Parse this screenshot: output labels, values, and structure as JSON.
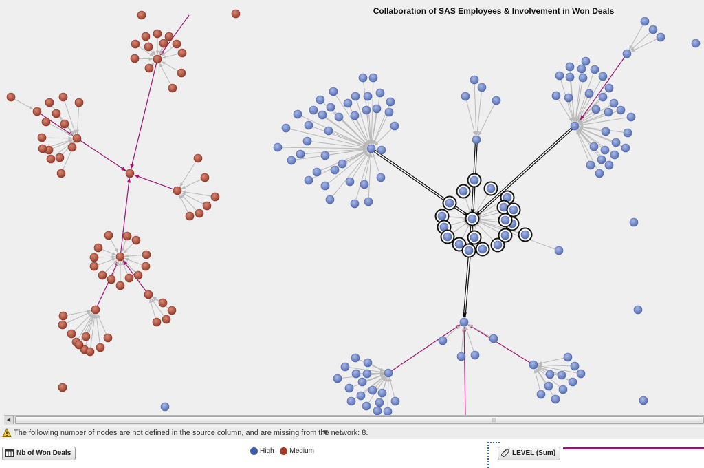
{
  "title": "Collaboration of SAS Employees & Involvement in Won Deals",
  "warning": "The following number of nodes are not defined in the source column, and are missing from the network: 8.",
  "footer": {
    "won_deals_button": "Nb of Won Deals",
    "level_button": "LEVEL (Sum)"
  },
  "legend": [
    {
      "label": "High",
      "color": "#3e5ba8"
    },
    {
      "label": "Medium",
      "color": "#a33a2a"
    }
  ],
  "colors": {
    "high_node": "#6f87c9",
    "medium_node": "#b25543",
    "edge_gray": "#b9b9b9",
    "edge_magenta": "#a0146e",
    "edge_black": "#1a1a1a"
  },
  "icons": {
    "warning": "warning-icon",
    "won_deals": "table-icon",
    "level": "ruler-icon",
    "scroll_left": "arrow-left-icon",
    "dropdown": "chevron-down-icon"
  }
}
